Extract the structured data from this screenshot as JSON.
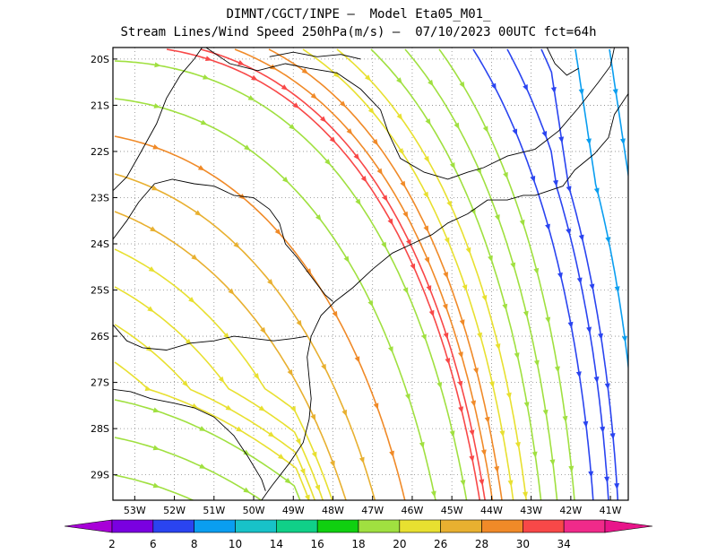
{
  "title_line1": "DIMNT/CGCT/INPE –  Model Eta05_M01_",
  "title_line2": "Stream Lines/Wind Speed 250hPa(m/s) –  07/10/2023 00UTC fct=64h",
  "lat_labels": [
    "20S",
    "21S",
    "22S",
    "23S",
    "24S",
    "25S",
    "26S",
    "27S",
    "28S",
    "29S"
  ],
  "lon_labels": [
    "53W",
    "52W",
    "51W",
    "50W",
    "49W",
    "48W",
    "47W",
    "46W",
    "45W",
    "44W",
    "43W",
    "42W",
    "41W"
  ],
  "colorbar": {
    "labels": [
      "2",
      "6",
      "8",
      "10",
      "14",
      "16",
      "18",
      "20",
      "26",
      "28",
      "30",
      "34"
    ],
    "colors": [
      "#a800d8",
      "#7a00e0",
      "#2a44f0",
      "#0a9ef0",
      "#18c2c8",
      "#10d088",
      "#10d010",
      "#a0e040",
      "#e8e030",
      "#e8b030",
      "#f08a28",
      "#f84848",
      "#f02a8a",
      "#e8158a"
    ]
  },
  "map_extent": {
    "lon_min": -53.55,
    "lon_max": -40.55,
    "lat_min": -29.55,
    "lat_max": -19.75
  },
  "grid": "dotted"
}
